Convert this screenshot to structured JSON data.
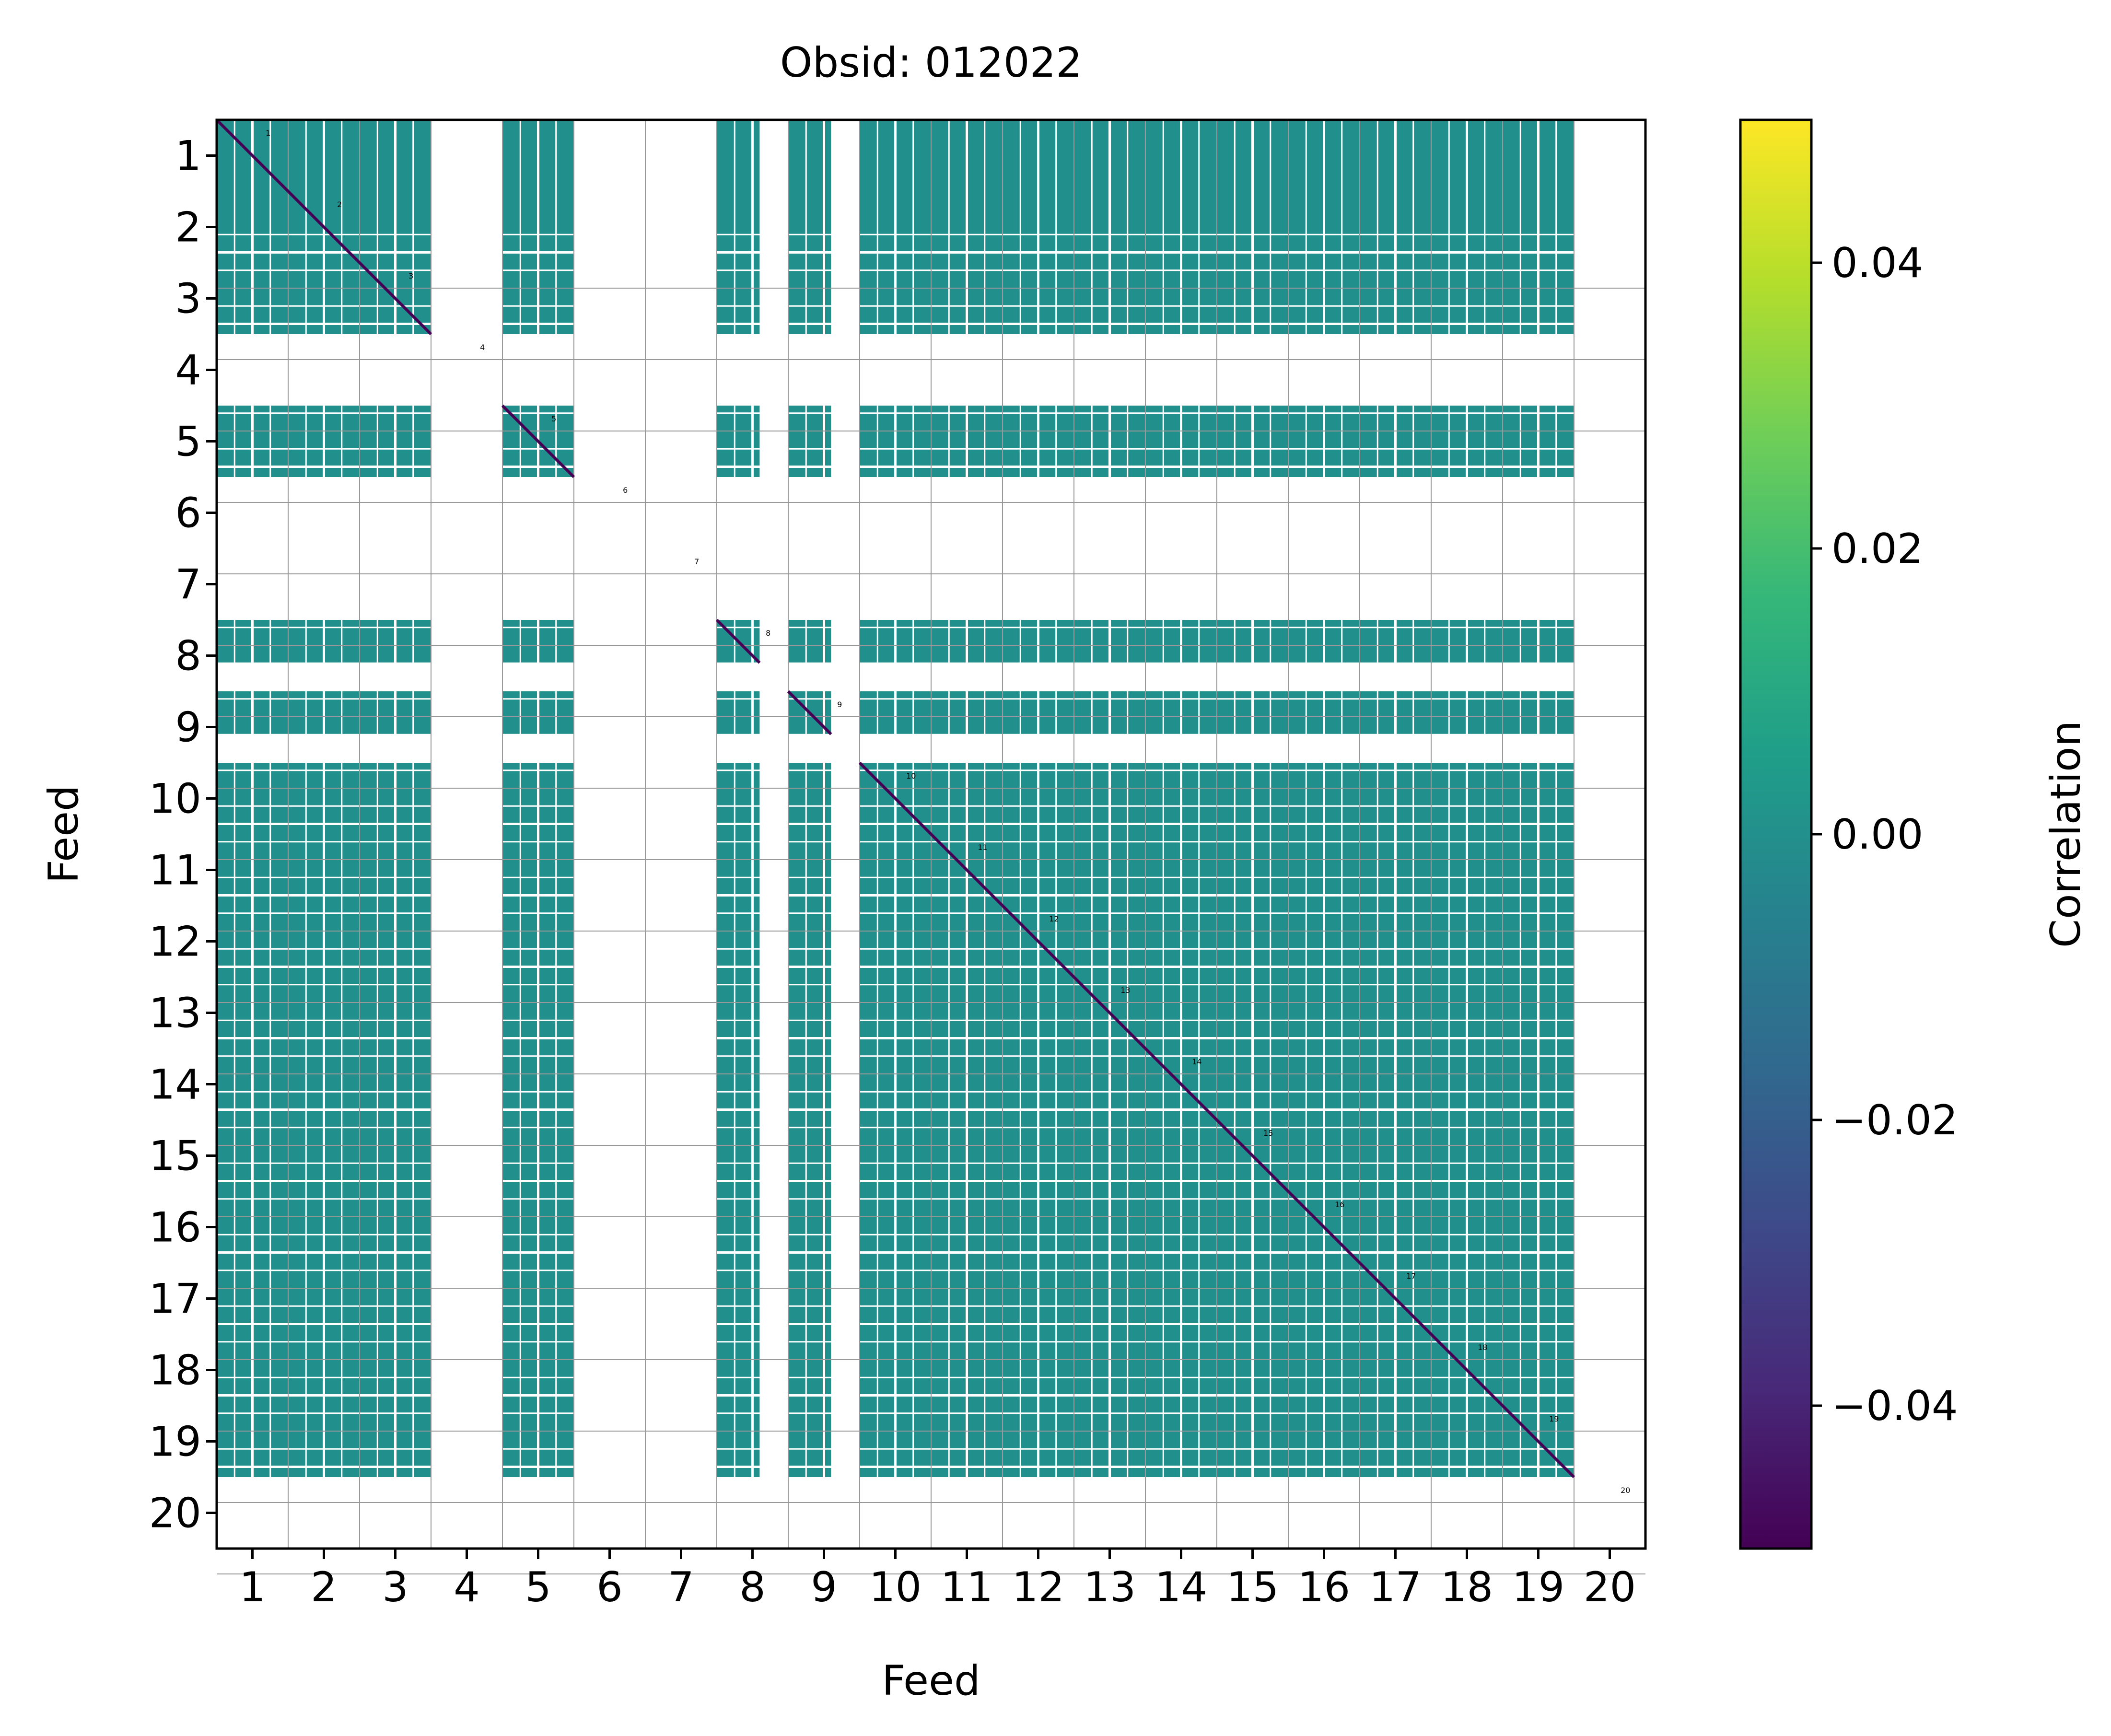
{
  "chart_data": {
    "type": "heatmap",
    "title": "Obsid: 012022",
    "xlabel": "Feed",
    "ylabel": "Feed",
    "feeds": [
      "1",
      "2",
      "3",
      "4",
      "5",
      "6",
      "7",
      "8",
      "9",
      "10",
      "11",
      "12",
      "13",
      "14",
      "15",
      "16",
      "17",
      "18",
      "19",
      "20"
    ],
    "x_tick_labels": [
      "1",
      "2",
      "3",
      "4",
      "5",
      "6",
      "7",
      "8",
      "9",
      "10",
      "11",
      "12",
      "13",
      "14",
      "15",
      "16",
      "17",
      "18",
      "19",
      "20"
    ],
    "y_tick_labels": [
      "1",
      "2",
      "3",
      "4",
      "5",
      "6",
      "7",
      "8",
      "9",
      "10",
      "11",
      "12",
      "13",
      "14",
      "15",
      "16",
      "17",
      "18",
      "19",
      "20"
    ],
    "active_feeds": [
      1,
      2,
      3,
      5,
      8,
      9,
      10,
      11,
      12,
      13,
      14,
      15,
      16,
      17,
      18,
      19
    ],
    "inactive_feeds": [
      4,
      6,
      7,
      20
    ],
    "half_band_feeds": [
      8,
      9
    ],
    "fill_value": 0.0,
    "fill_color": "#21908d",
    "diagonal_color": "#440154",
    "colorbar": {
      "label": "Correlation",
      "vmin": -0.05,
      "vmax": 0.05,
      "ticks": [
        -0.04,
        -0.02,
        0.0,
        0.02,
        0.04
      ],
      "tick_labels": [
        "−0.04",
        "−0.02",
        "0.00",
        "0.02",
        "0.04"
      ],
      "colormap_stops": [
        "#440154",
        "#482878",
        "#3e4989",
        "#31688e",
        "#26828e",
        "#1f9e89",
        "#35b779",
        "#6ece58",
        "#b5de2b",
        "#fde725"
      ]
    }
  }
}
